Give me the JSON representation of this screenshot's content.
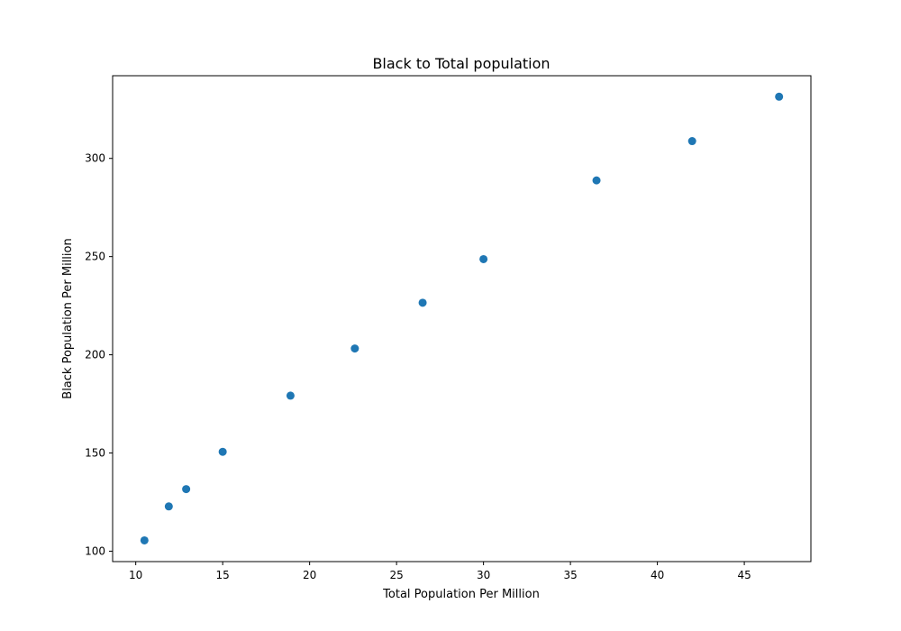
{
  "chart_data": {
    "type": "scatter",
    "title": "Black to Total population",
    "xlabel": "Total Population Per Million",
    "ylabel": "Black Population Per Million",
    "xlim": [
      8.67,
      48.83
    ],
    "ylim": [
      94.7,
      342.1
    ],
    "xticks": [
      10,
      15,
      20,
      25,
      30,
      35,
      40,
      45
    ],
    "yticks": [
      100,
      150,
      200,
      250,
      300
    ],
    "grid": false,
    "legend": "none",
    "marker_color": "#1f77b4",
    "series": [
      {
        "points": [
          {
            "x": 10.5,
            "y": 105.5
          },
          {
            "x": 11.9,
            "y": 122.8
          },
          {
            "x": 12.9,
            "y": 131.6
          },
          {
            "x": 15.0,
            "y": 150.6
          },
          {
            "x": 18.9,
            "y": 179.2
          },
          {
            "x": 22.6,
            "y": 203.2
          },
          {
            "x": 26.5,
            "y": 226.5
          },
          {
            "x": 30.0,
            "y": 248.7
          },
          {
            "x": 36.5,
            "y": 288.8
          },
          {
            "x": 42.0,
            "y": 308.8
          },
          {
            "x": 47.0,
            "y": 331.4
          }
        ]
      }
    ]
  }
}
